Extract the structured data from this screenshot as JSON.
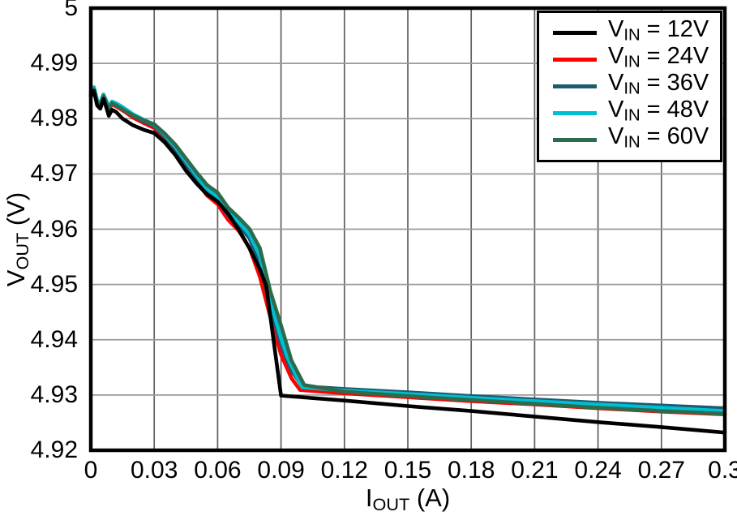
{
  "page": {
    "background": "#ffffff"
  },
  "chart_data": {
    "type": "line",
    "title": "",
    "xlabel": {
      "main": "I",
      "sub": "OUT",
      "rest": " (A)",
      "plain": "IOUT (A)"
    },
    "ylabel": {
      "main": "V",
      "sub": "OUT",
      "rest": " (V)",
      "plain": "VOUT (V)"
    },
    "xlim": [
      0,
      0.3
    ],
    "ylim": [
      4.92,
      5.0
    ],
    "xticks": [
      {
        "v": 0,
        "label": "0"
      },
      {
        "v": 0.03,
        "label": "0.03"
      },
      {
        "v": 0.06,
        "label": "0.06"
      },
      {
        "v": 0.09,
        "label": "0.09"
      },
      {
        "v": 0.12,
        "label": "0.12"
      },
      {
        "v": 0.15,
        "label": "0.15"
      },
      {
        "v": 0.18,
        "label": "0.18"
      },
      {
        "v": 0.21,
        "label": "0.21"
      },
      {
        "v": 0.24,
        "label": "0.24"
      },
      {
        "v": 0.27,
        "label": "0.27"
      },
      {
        "v": 0.3,
        "label": "0.3"
      }
    ],
    "yticks": [
      {
        "v": 5.0,
        "label": "5"
      },
      {
        "v": 4.99,
        "label": "4.99"
      },
      {
        "v": 4.98,
        "label": "4.98"
      },
      {
        "v": 4.97,
        "label": "4.97"
      },
      {
        "v": 4.96,
        "label": "4.96"
      },
      {
        "v": 4.95,
        "label": "4.95"
      },
      {
        "v": 4.94,
        "label": "4.94"
      },
      {
        "v": 4.93,
        "label": "4.93"
      },
      {
        "v": 4.92,
        "label": "4.92"
      }
    ],
    "grid": true,
    "grid_color_vertical": "#5f5f5f",
    "grid_color_horizontal": "#9a9a9a",
    "axis_color": "#000000",
    "legend_position": "top-right",
    "series": [
      {
        "id": "vin-12v",
        "name": "VIN = 12V",
        "label_parts": {
          "main": "V",
          "sub": "IN",
          "rest": " = 12V"
        },
        "color": "#000000",
        "points": [
          [
            0,
            4.984
          ],
          [
            0.0015,
            4.985
          ],
          [
            0.003,
            4.9824
          ],
          [
            0.0045,
            4.9818
          ],
          [
            0.006,
            4.9836
          ],
          [
            0.0075,
            4.9818
          ],
          [
            0.0085,
            4.9805
          ],
          [
            0.01,
            4.9816
          ],
          [
            0.012,
            4.9812
          ],
          [
            0.015,
            4.98
          ],
          [
            0.02,
            4.9788
          ],
          [
            0.025,
            4.978
          ],
          [
            0.03,
            4.9774
          ],
          [
            0.035,
            4.9757
          ],
          [
            0.04,
            4.9734
          ],
          [
            0.045,
            4.9706
          ],
          [
            0.05,
            4.9683
          ],
          [
            0.055,
            4.9663
          ],
          [
            0.06,
            4.965
          ],
          [
            0.065,
            4.9628
          ],
          [
            0.07,
            4.9599
          ],
          [
            0.075,
            4.9566
          ],
          [
            0.08,
            4.9528
          ],
          [
            0.083,
            4.9497
          ],
          [
            0.09,
            4.9299
          ],
          [
            0.12,
            4.929
          ],
          [
            0.15,
            4.928
          ],
          [
            0.18,
            4.9271
          ],
          [
            0.21,
            4.9261
          ],
          [
            0.24,
            4.9251
          ],
          [
            0.27,
            4.9242
          ],
          [
            0.3,
            4.9232
          ]
        ]
      },
      {
        "id": "vin-24v",
        "name": "VIN = 24V",
        "label_parts": {
          "main": "V",
          "sub": "IN",
          "rest": " = 24V"
        },
        "color": "#ff0000",
        "points": [
          [
            0,
            4.9843
          ],
          [
            0.0015,
            4.9852
          ],
          [
            0.003,
            4.9828
          ],
          [
            0.0045,
            4.9822
          ],
          [
            0.006,
            4.984
          ],
          [
            0.0075,
            4.9826
          ],
          [
            0.0085,
            4.9815
          ],
          [
            0.01,
            4.9826
          ],
          [
            0.012,
            4.9822
          ],
          [
            0.015,
            4.9815
          ],
          [
            0.02,
            4.9802
          ],
          [
            0.025,
            4.9792
          ],
          [
            0.03,
            4.9783
          ],
          [
            0.035,
            4.9764
          ],
          [
            0.04,
            4.9739
          ],
          [
            0.045,
            4.9711
          ],
          [
            0.05,
            4.9686
          ],
          [
            0.055,
            4.9661
          ],
          [
            0.06,
            4.9645
          ],
          [
            0.065,
            4.9617
          ],
          [
            0.07,
            4.9597
          ],
          [
            0.075,
            4.9567
          ],
          [
            0.08,
            4.9514
          ],
          [
            0.085,
            4.944
          ],
          [
            0.09,
            4.9373
          ],
          [
            0.095,
            4.933
          ],
          [
            0.099,
            4.9309
          ],
          [
            0.12,
            4.9303
          ],
          [
            0.15,
            4.9296
          ],
          [
            0.18,
            4.9289
          ],
          [
            0.21,
            4.9283
          ],
          [
            0.24,
            4.9276
          ],
          [
            0.27,
            4.927
          ],
          [
            0.3,
            4.9265
          ]
        ]
      },
      {
        "id": "vin-36v",
        "name": "VIN = 36V",
        "label_parts": {
          "main": "V",
          "sub": "IN",
          "rest": " = 36V"
        },
        "color": "#1e5a6e",
        "points": [
          [
            0,
            4.9846
          ],
          [
            0.0015,
            4.9856
          ],
          [
            0.003,
            4.9831
          ],
          [
            0.0045,
            4.9825
          ],
          [
            0.006,
            4.9842
          ],
          [
            0.0075,
            4.9829
          ],
          [
            0.0085,
            4.9818
          ],
          [
            0.01,
            4.9829
          ],
          [
            0.012,
            4.9826
          ],
          [
            0.015,
            4.9818
          ],
          [
            0.02,
            4.9805
          ],
          [
            0.025,
            4.9795
          ],
          [
            0.03,
            4.9787
          ],
          [
            0.035,
            4.9768
          ],
          [
            0.04,
            4.9745
          ],
          [
            0.045,
            4.9718
          ],
          [
            0.05,
            4.9692
          ],
          [
            0.055,
            4.9668
          ],
          [
            0.06,
            4.9653
          ],
          [
            0.065,
            4.9625
          ],
          [
            0.07,
            4.9607
          ],
          [
            0.075,
            4.9584
          ],
          [
            0.08,
            4.954
          ],
          [
            0.085,
            4.9458
          ],
          [
            0.09,
            4.9391
          ],
          [
            0.095,
            4.9344
          ],
          [
            0.1,
            4.9316
          ],
          [
            0.12,
            4.9311
          ],
          [
            0.15,
            4.9305
          ],
          [
            0.18,
            4.9298
          ],
          [
            0.21,
            4.9292
          ],
          [
            0.24,
            4.9286
          ],
          [
            0.27,
            4.9281
          ],
          [
            0.3,
            4.9276
          ]
        ]
      },
      {
        "id": "vin-48v",
        "name": "VIN = 48V",
        "label_parts": {
          "main": "V",
          "sub": "IN",
          "rest": " = 48V"
        },
        "color": "#00bed4",
        "points": [
          [
            0,
            4.9849
          ],
          [
            0.0015,
            4.9857
          ],
          [
            0.003,
            4.9834
          ],
          [
            0.0045,
            4.9828
          ],
          [
            0.006,
            4.9844
          ],
          [
            0.0075,
            4.9831
          ],
          [
            0.0085,
            4.9821
          ],
          [
            0.01,
            4.9831
          ],
          [
            0.012,
            4.9828
          ],
          [
            0.015,
            4.9821
          ],
          [
            0.02,
            4.9808
          ],
          [
            0.025,
            4.9798
          ],
          [
            0.03,
            4.9789
          ],
          [
            0.035,
            4.9771
          ],
          [
            0.04,
            4.9749
          ],
          [
            0.045,
            4.9723
          ],
          [
            0.05,
            4.9697
          ],
          [
            0.055,
            4.9673
          ],
          [
            0.06,
            4.9659
          ],
          [
            0.065,
            4.9632
          ],
          [
            0.07,
            4.9613
          ],
          [
            0.075,
            4.9591
          ],
          [
            0.08,
            4.9552
          ],
          [
            0.085,
            4.9469
          ],
          [
            0.09,
            4.9403
          ],
          [
            0.093,
            4.9369
          ],
          [
            0.097,
            4.9337
          ],
          [
            0.1,
            4.9314
          ],
          [
            0.12,
            4.9308
          ],
          [
            0.15,
            4.9302
          ],
          [
            0.18,
            4.9295
          ],
          [
            0.21,
            4.9289
          ],
          [
            0.24,
            4.9283
          ],
          [
            0.27,
            4.9277
          ],
          [
            0.3,
            4.9271
          ]
        ]
      },
      {
        "id": "vin-60v",
        "name": "VIN = 60V",
        "label_parts": {
          "main": "V",
          "sub": "IN",
          "rest": " = 60V"
        },
        "color": "#2d6c4b",
        "points": [
          [
            0,
            4.9844
          ],
          [
            0.0015,
            4.9853
          ],
          [
            0.003,
            4.9829
          ],
          [
            0.0045,
            4.9823
          ],
          [
            0.006,
            4.9841
          ],
          [
            0.0075,
            4.9827
          ],
          [
            0.0085,
            4.9817
          ],
          [
            0.01,
            4.9828
          ],
          [
            0.012,
            4.9824
          ],
          [
            0.015,
            4.9817
          ],
          [
            0.02,
            4.9806
          ],
          [
            0.025,
            4.9797
          ],
          [
            0.03,
            4.979
          ],
          [
            0.035,
            4.9773
          ],
          [
            0.04,
            4.9753
          ],
          [
            0.045,
            4.9728
          ],
          [
            0.05,
            4.9703
          ],
          [
            0.055,
            4.968
          ],
          [
            0.06,
            4.9666
          ],
          [
            0.065,
            4.9639
          ],
          [
            0.07,
            4.9621
          ],
          [
            0.075,
            4.9601
          ],
          [
            0.08,
            4.9566
          ],
          [
            0.085,
            4.9487
          ],
          [
            0.09,
            4.9426
          ],
          [
            0.095,
            4.9362
          ],
          [
            0.101,
            4.9318
          ],
          [
            0.12,
            4.9306
          ],
          [
            0.15,
            4.9298
          ],
          [
            0.18,
            4.9291
          ],
          [
            0.21,
            4.9284
          ],
          [
            0.24,
            4.9277
          ],
          [
            0.27,
            4.9271
          ],
          [
            0.3,
            4.9266
          ]
        ]
      }
    ]
  }
}
